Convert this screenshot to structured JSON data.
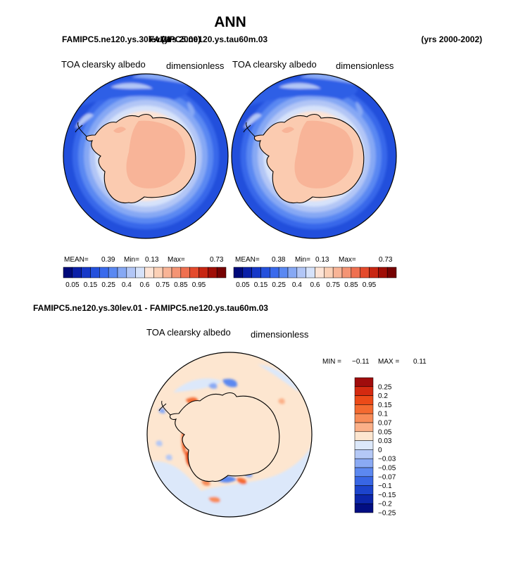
{
  "chart_data": {
    "type": "polar-contour-maps",
    "title": "ANN",
    "header": {
      "case_a": "FAMIPC5.ne120.ys.30lev.01",
      "years_a": "(yrs 2000)",
      "case_b": "FAMIPC5.ne120.ys.tau60m.03",
      "years_b": "(yrs 2000-2002)"
    },
    "panels": [
      {
        "id": "top-left",
        "var_label": "TOA clearsky albedo",
        "units": "dimensionless",
        "stats": {
          "mean_label": "MEAN=",
          "mean": "0.39",
          "min_label": "Min=",
          "min": "0.13",
          "max_label": "Max=",
          "max": "0.73"
        }
      },
      {
        "id": "top-right",
        "var_label": "TOA clearsky albedo",
        "units": "dimensionless",
        "stats": {
          "mean_label": "MEAN=",
          "mean": "0.38",
          "min_label": "Min=",
          "min": "0.13",
          "max_label": "Max=",
          "max": "0.73"
        }
      }
    ],
    "abs_colorbar": {
      "colors": [
        "#000a7a",
        "#0a1fa8",
        "#1638c8",
        "#2450dc",
        "#3a6aec",
        "#5a88f2",
        "#86a8f4",
        "#b2c6f6",
        "#d6e2fa",
        "#fde4d6",
        "#fbd0b6",
        "#f8b496",
        "#f49474",
        "#ef7050",
        "#e44a2c",
        "#c82612",
        "#a00e06",
        "#760202"
      ],
      "labels": [
        "0.05",
        "0.15",
        "0.25",
        "0.4",
        "0.6",
        "0.75",
        "0.85",
        "0.95"
      ]
    },
    "diff": {
      "title": "FAMIPC5.ne120.ys.30lev.01 - FAMIPC5.ne120.ys.tau60m.03",
      "var_label": "TOA clearsky albedo",
      "units": "dimensionless",
      "min_label": "MIN =",
      "min": "−0.11",
      "max_label": "MAX =",
      "max": "0.11",
      "colorbar": {
        "colors": [
          "#a00c0c",
          "#d42a10",
          "#ec4a18",
          "#f46a30",
          "#f88c58",
          "#fbb088",
          "#fde6d0",
          "#dce8fa",
          "#b4c8f6",
          "#8aaaf4",
          "#5c88f0",
          "#3866e4",
          "#1c44cc",
          "#0c26aa",
          "#020e82"
        ],
        "labels": [
          "0.25",
          "0.2",
          "0.15",
          "0.1",
          "0.07",
          "0.05",
          "0.03",
          "0",
          "−0.03",
          "−0.05",
          "−0.07",
          "−0.1",
          "−0.15",
          "−0.2",
          "−0.25"
        ]
      }
    }
  }
}
